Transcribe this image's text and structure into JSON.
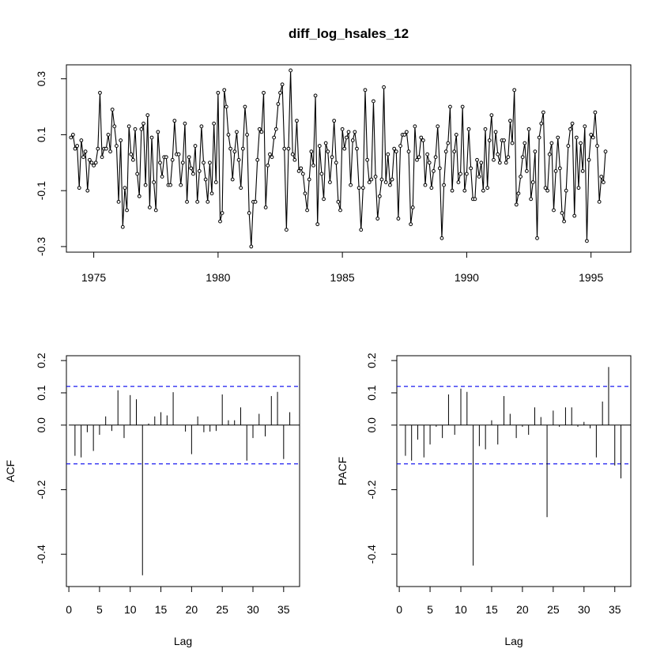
{
  "chart_data": [
    {
      "type": "line",
      "title": "diff_log_hsales_12",
      "xlabel": "",
      "ylabel": "",
      "xlim": [
        1973.9,
        1996.6
      ],
      "ylim": [
        -0.32,
        0.35
      ],
      "x_ticks": [
        1975,
        1980,
        1985,
        1990,
        1995
      ],
      "x_tick_labels": [
        "1975",
        "1980",
        "1985",
        "1990",
        "1995"
      ],
      "y_ticks": [
        -0.3,
        -0.1,
        0.1,
        0.3
      ],
      "y_tick_labels": [
        "-0.3",
        "-0.1",
        "0.1",
        "0.3"
      ],
      "grid": false,
      "start_year": 1974,
      "start_month": 2,
      "frequency": 12,
      "values": [
        0.09,
        0.1,
        0.05,
        0.06,
        -0.09,
        0.08,
        0.02,
        0.04,
        -0.1,
        0.01,
        0.0,
        -0.01,
        0.0,
        0.05,
        0.25,
        0.02,
        0.05,
        0.05,
        0.1,
        0.04,
        0.19,
        0.13,
        0.06,
        -0.14,
        0.08,
        -0.23,
        -0.09,
        -0.17,
        0.13,
        0.03,
        0.01,
        0.12,
        -0.04,
        -0.12,
        0.12,
        0.14,
        -0.08,
        0.17,
        -0.16,
        0.09,
        -0.07,
        -0.17,
        0.11,
        0.0,
        -0.05,
        0.02,
        0.02,
        -0.08,
        -0.08,
        0.01,
        0.15,
        0.03,
        0.03,
        -0.08,
        0.0,
        0.14,
        -0.14,
        0.02,
        -0.02,
        -0.04,
        0.06,
        -0.14,
        -0.03,
        0.13,
        0.0,
        -0.06,
        -0.14,
        0.0,
        -0.11,
        0.14,
        -0.07,
        0.25,
        -0.21,
        -0.18,
        0.26,
        0.2,
        0.1,
        0.05,
        -0.06,
        0.04,
        0.11,
        0.01,
        -0.09,
        0.05,
        0.2,
        0.1,
        -0.18,
        -0.3,
        -0.14,
        -0.14,
        0.01,
        0.12,
        0.11,
        0.25,
        -0.16,
        -0.01,
        0.03,
        0.02,
        0.09,
        0.12,
        0.21,
        0.25,
        0.28,
        0.05,
        -0.24,
        0.05,
        0.33,
        0.03,
        0.01,
        0.15,
        -0.03,
        -0.02,
        -0.04,
        -0.11,
        -0.17,
        -0.06,
        0.04,
        -0.01,
        0.24,
        -0.22,
        0.06,
        -0.04,
        -0.13,
        0.07,
        0.04,
        -0.07,
        0.02,
        0.15,
        0.0,
        -0.14,
        -0.17,
        0.12,
        0.05,
        0.09,
        0.11,
        -0.08,
        0.08,
        0.11,
        0.05,
        -0.09,
        -0.24,
        -0.09,
        0.26,
        0.01,
        -0.07,
        -0.06,
        0.22,
        -0.05,
        -0.2,
        -0.12,
        -0.06,
        0.27,
        -0.07,
        0.03,
        -0.08,
        -0.06,
        0.05,
        0.04,
        -0.2,
        0.06,
        0.1,
        0.1,
        0.11,
        0.04,
        -0.22,
        -0.16,
        0.13,
        0.01,
        0.02,
        0.09,
        0.08,
        -0.08,
        0.03,
        0.0,
        -0.09,
        -0.03,
        0.02,
        0.13,
        -0.02,
        -0.27,
        -0.08,
        0.04,
        0.07,
        0.2,
        -0.1,
        0.04,
        0.1,
        -0.07,
        -0.04,
        0.2,
        -0.1,
        -0.04,
        0.12,
        -0.02,
        -0.13,
        -0.13,
        0.01,
        -0.05,
        0.0,
        -0.1,
        0.12,
        -0.09,
        0.08,
        0.17,
        0.01,
        0.11,
        0.03,
        0.0,
        0.08,
        0.08,
        0.0,
        0.02,
        0.15,
        0.07,
        0.26,
        -0.15,
        -0.11,
        -0.05,
        0.02,
        0.07,
        -0.03,
        0.12,
        -0.13,
        -0.07,
        0.04,
        -0.27,
        0.09,
        0.14,
        0.18,
        -0.09,
        -0.1,
        0.03,
        0.07,
        -0.17,
        -0.03,
        0.09,
        -0.02,
        -0.18,
        -0.21,
        -0.1,
        0.06,
        0.12,
        0.14,
        -0.19,
        0.09,
        -0.09,
        0.07,
        -0.03,
        0.13,
        -0.28,
        0.01,
        0.1,
        0.09,
        0.18,
        0.06,
        -0.14,
        -0.05,
        -0.07,
        0.04
      ]
    },
    {
      "type": "bar",
      "title": "",
      "xlabel": "Lag",
      "ylabel": "ACF",
      "xlim": [
        -0.4,
        37.6
      ],
      "ylim": [
        -0.5,
        0.215
      ],
      "x_ticks": [
        0,
        5,
        10,
        15,
        20,
        25,
        30,
        35
      ],
      "x_tick_labels": [
        "0",
        "5",
        "10",
        "15",
        "20",
        "25",
        "30",
        "35"
      ],
      "y_ticks": [
        -0.4,
        -0.2,
        0.0,
        0.1,
        0.2
      ],
      "y_tick_labels": [
        "-0.4",
        "-0.2",
        "0.0",
        "0.1",
        "0.2"
      ],
      "ci": 0.12,
      "lags": [
        1,
        2,
        3,
        4,
        5,
        6,
        7,
        8,
        9,
        10,
        11,
        12,
        13,
        14,
        15,
        16,
        17,
        18,
        19,
        20,
        21,
        22,
        23,
        24,
        25,
        26,
        27,
        28,
        29,
        30,
        31,
        32,
        33,
        34,
        35,
        36
      ],
      "values": [
        -0.095,
        -0.1,
        -0.022,
        -0.08,
        -0.03,
        0.027,
        -0.018,
        0.108,
        -0.04,
        0.093,
        0.08,
        -0.465,
        0.005,
        0.027,
        0.04,
        0.03,
        0.102,
        0.0,
        -0.02,
        -0.09,
        0.027,
        -0.022,
        -0.02,
        -0.018,
        0.095,
        0.015,
        0.015,
        0.055,
        -0.11,
        -0.04,
        0.035,
        -0.035,
        0.09,
        0.103,
        -0.105,
        0.04
      ]
    },
    {
      "type": "bar",
      "title": "",
      "xlabel": "Lag",
      "ylabel": "PACF",
      "xlim": [
        -0.4,
        37.6
      ],
      "ylim": [
        -0.5,
        0.215
      ],
      "x_ticks": [
        0,
        5,
        10,
        15,
        20,
        25,
        30,
        35
      ],
      "x_tick_labels": [
        "0",
        "5",
        "10",
        "15",
        "20",
        "25",
        "30",
        "35"
      ],
      "y_ticks": [
        -0.4,
        -0.2,
        0.0,
        0.1,
        0.2
      ],
      "y_tick_labels": [
        "-0.4",
        "-0.2",
        "0.0",
        "0.1",
        "0.2"
      ],
      "ci": 0.12,
      "lags": [
        1,
        2,
        3,
        4,
        5,
        6,
        7,
        8,
        9,
        10,
        11,
        12,
        13,
        14,
        15,
        16,
        17,
        18,
        19,
        20,
        21,
        22,
        23,
        24,
        25,
        26,
        27,
        28,
        29,
        30,
        31,
        32,
        33,
        34,
        35,
        36
      ],
      "values": [
        -0.095,
        -0.11,
        -0.045,
        -0.1,
        -0.06,
        -0.005,
        -0.04,
        0.095,
        -0.03,
        0.113,
        0.103,
        -0.435,
        -0.065,
        -0.075,
        0.015,
        -0.06,
        0.09,
        0.035,
        -0.04,
        -0.005,
        -0.03,
        0.055,
        0.025,
        -0.285,
        0.045,
        -0.005,
        0.055,
        0.055,
        -0.005,
        0.01,
        -0.01,
        -0.1,
        0.073,
        0.18,
        -0.125,
        -0.165
      ]
    }
  ]
}
